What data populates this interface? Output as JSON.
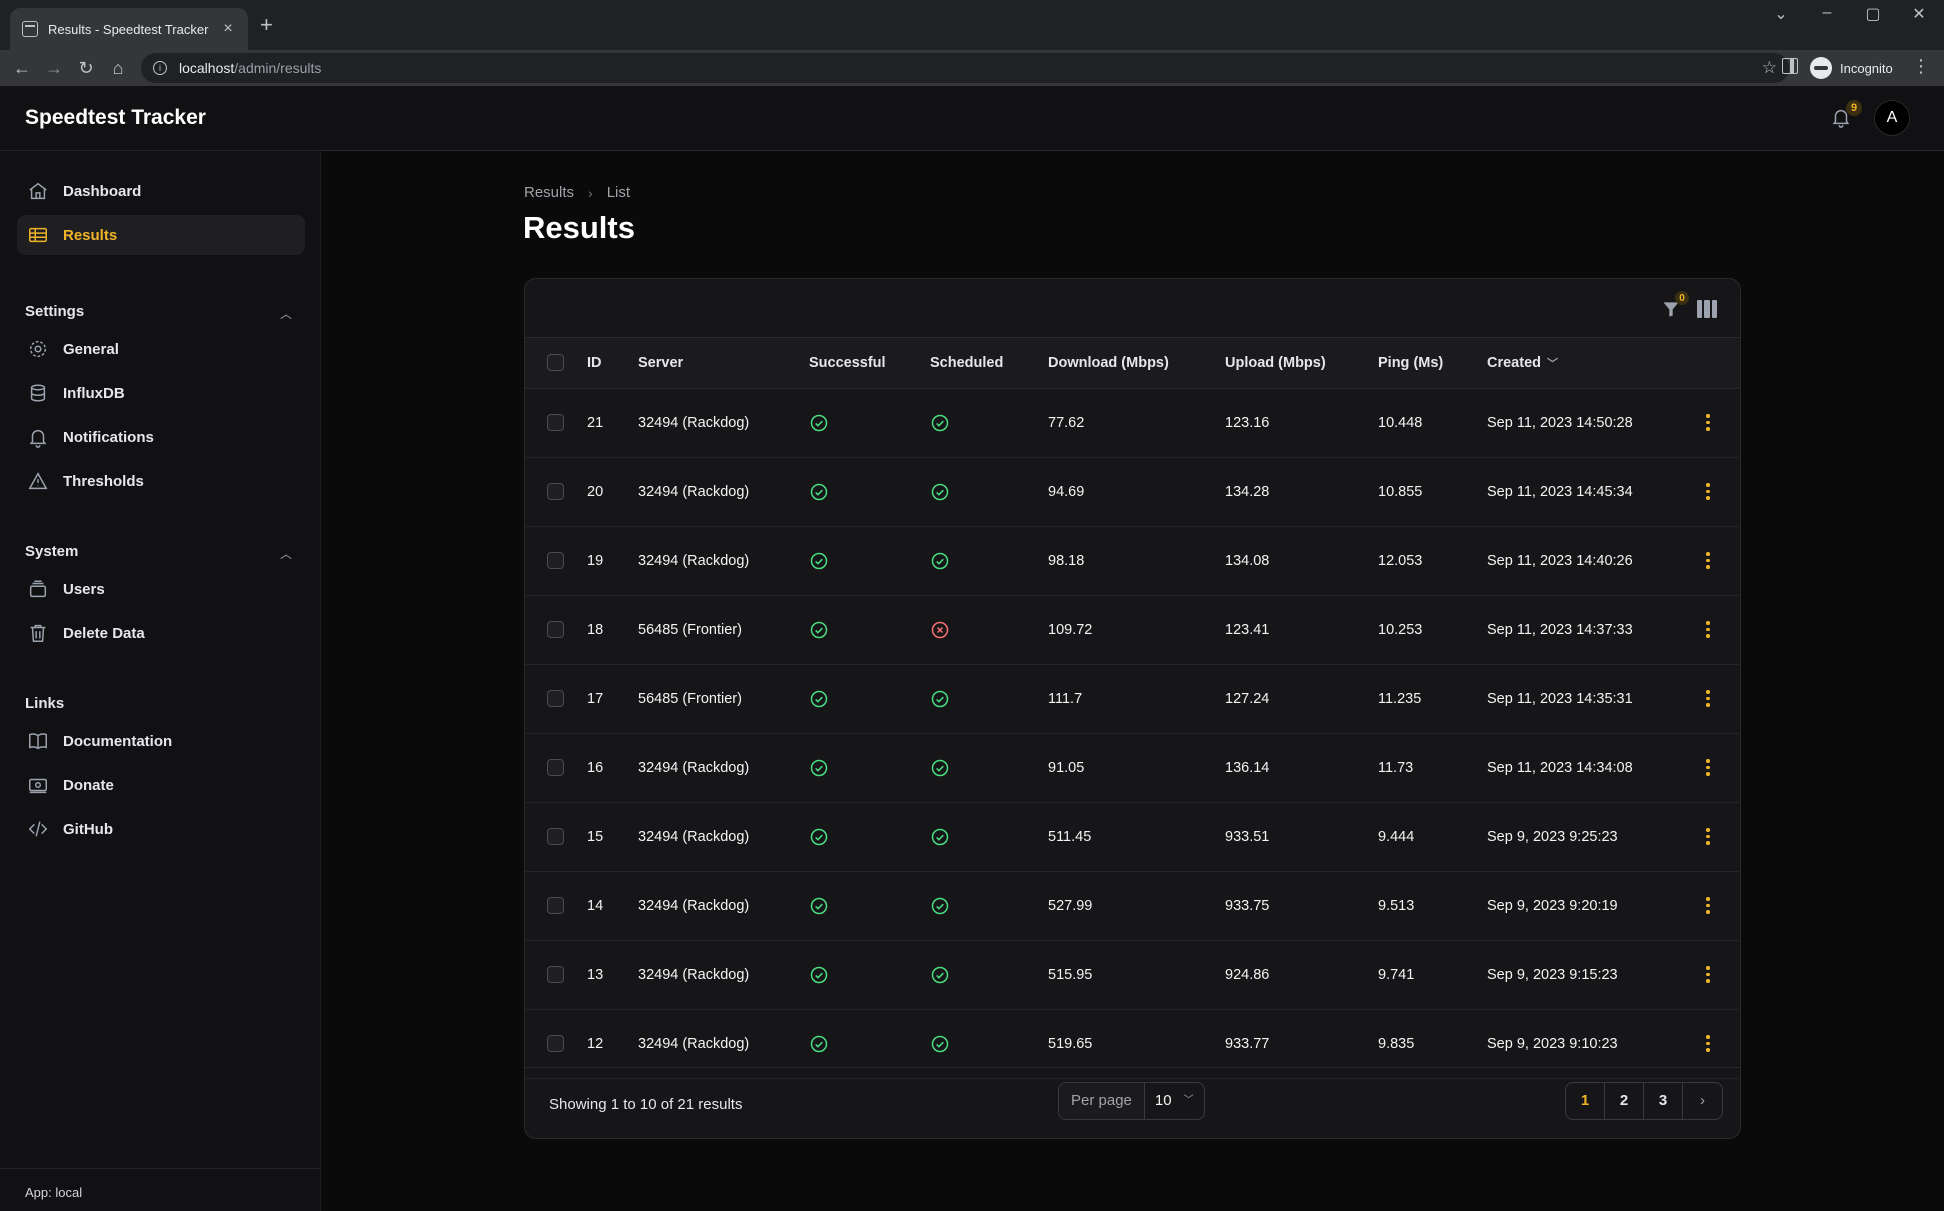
{
  "browser": {
    "tab_title": "Results - Speedtest Tracker",
    "url_host": "localhost",
    "url_path": "/admin/results",
    "profile_label": "Incognito"
  },
  "app": {
    "brand": "Speedtest Tracker",
    "notification_count": "9",
    "user_initial": "A",
    "env_label": "App: local"
  },
  "sidebar": {
    "dashboard": "Dashboard",
    "results": "Results",
    "settings_label": "Settings",
    "general": "General",
    "influxdb": "InfluxDB",
    "notifications": "Notifications",
    "thresholds": "Thresholds",
    "system_label": "System",
    "users": "Users",
    "delete_data": "Delete Data",
    "links_label": "Links",
    "documentation": "Documentation",
    "donate": "Donate",
    "github": "GitHub"
  },
  "page": {
    "breadcrumb": [
      "Results",
      "List"
    ],
    "title": "Results",
    "filter_count": "0"
  },
  "table": {
    "columns": {
      "id": "ID",
      "server": "Server",
      "successful": "Successful",
      "scheduled": "Scheduled",
      "download": "Download (Mbps)",
      "upload": "Upload (Mbps)",
      "ping": "Ping (Ms)",
      "created": "Created"
    },
    "rows": [
      {
        "id": "21",
        "server": "32494 (Rackdog)",
        "successful": true,
        "scheduled": true,
        "download": "77.62",
        "upload": "123.16",
        "ping": "10.448",
        "created": "Sep 11, 2023 14:50:28"
      },
      {
        "id": "20",
        "server": "32494 (Rackdog)",
        "successful": true,
        "scheduled": true,
        "download": "94.69",
        "upload": "134.28",
        "ping": "10.855",
        "created": "Sep 11, 2023 14:45:34"
      },
      {
        "id": "19",
        "server": "32494 (Rackdog)",
        "successful": true,
        "scheduled": true,
        "download": "98.18",
        "upload": "134.08",
        "ping": "12.053",
        "created": "Sep 11, 2023 14:40:26"
      },
      {
        "id": "18",
        "server": "56485 (Frontier)",
        "successful": true,
        "scheduled": false,
        "download": "109.72",
        "upload": "123.41",
        "ping": "10.253",
        "created": "Sep 11, 2023 14:37:33"
      },
      {
        "id": "17",
        "server": "56485 (Frontier)",
        "successful": true,
        "scheduled": true,
        "download": "111.7",
        "upload": "127.24",
        "ping": "11.235",
        "created": "Sep 11, 2023 14:35:31"
      },
      {
        "id": "16",
        "server": "32494 (Rackdog)",
        "successful": true,
        "scheduled": true,
        "download": "91.05",
        "upload": "136.14",
        "ping": "11.73",
        "created": "Sep 11, 2023 14:34:08"
      },
      {
        "id": "15",
        "server": "32494 (Rackdog)",
        "successful": true,
        "scheduled": true,
        "download": "511.45",
        "upload": "933.51",
        "ping": "9.444",
        "created": "Sep 9, 2023 9:25:23"
      },
      {
        "id": "14",
        "server": "32494 (Rackdog)",
        "successful": true,
        "scheduled": true,
        "download": "527.99",
        "upload": "933.75",
        "ping": "9.513",
        "created": "Sep 9, 2023 9:20:19"
      },
      {
        "id": "13",
        "server": "32494 (Rackdog)",
        "successful": true,
        "scheduled": true,
        "download": "515.95",
        "upload": "924.86",
        "ping": "9.741",
        "created": "Sep 9, 2023 9:15:23"
      },
      {
        "id": "12",
        "server": "32494 (Rackdog)",
        "successful": true,
        "scheduled": true,
        "download": "519.65",
        "upload": "933.77",
        "ping": "9.835",
        "created": "Sep 9, 2023 9:10:23"
      }
    ]
  },
  "pagination": {
    "showing": "Showing 1 to 10 of 21 results",
    "per_page_label": "Per page",
    "per_page_value": "10",
    "pages": [
      "1",
      "2",
      "3"
    ],
    "current_page": "1"
  },
  "colors": {
    "accent": "#f0b429",
    "success": "#4ade80",
    "danger": "#f87171"
  }
}
